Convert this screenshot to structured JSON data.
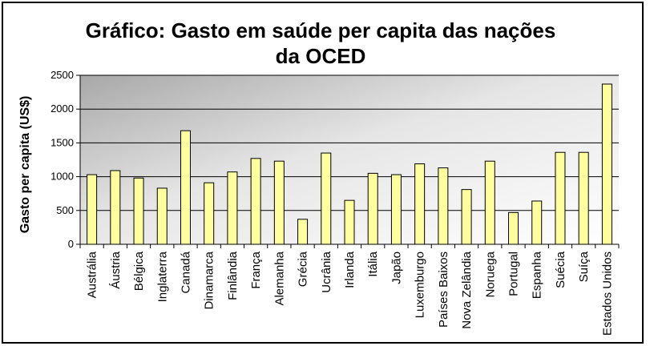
{
  "chart_data": {
    "type": "bar",
    "title": "Gráfico: Gasto em saúde per capita das nações da OCED",
    "xlabel": "",
    "ylabel": "Gasto per capita (US$)",
    "ylim": [
      0,
      2500
    ],
    "yticks": [
      0,
      500,
      1000,
      1500,
      2000,
      2500
    ],
    "grid": true,
    "legend": "none",
    "categories": [
      "Austrália",
      "Áustria",
      "Bélgica",
      "Inglaterra",
      "Canadá",
      "Dinamarca",
      "Finlândia",
      "França",
      "Alemanha",
      "Grécia",
      "Ucrânia",
      "Irlanda",
      "Itália",
      "Japão",
      "Luxemburgo",
      "Países Baixos",
      "Nova Zelândia",
      "Noruega",
      "Portugal",
      "Espanha",
      "Suécia",
      "Suíça",
      "Estados Unidos"
    ],
    "values": [
      1030,
      1090,
      980,
      830,
      1680,
      910,
      1070,
      1270,
      1230,
      370,
      1350,
      650,
      1050,
      1030,
      1190,
      1130,
      810,
      1230,
      470,
      640,
      1360,
      1360,
      2370
    ],
    "colors": {
      "bar_fill": "#ffffa0",
      "bar_stroke": "#000000",
      "plot_bg_light": "#ffffff",
      "plot_bg_dark": "#a8a8a8",
      "grid": "#000000"
    }
  }
}
